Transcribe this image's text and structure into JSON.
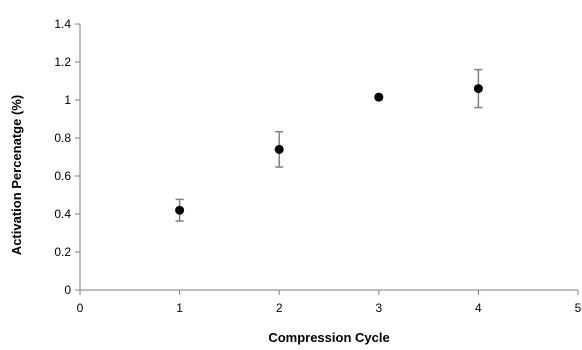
{
  "chart_data": {
    "type": "scatter",
    "xlabel": "Compression Cycle",
    "ylabel": "Activation Percenatge (%)",
    "xlim": [
      0,
      5
    ],
    "ylim": [
      0,
      1.4
    ],
    "x_ticks": [
      "0",
      "1",
      "2",
      "3",
      "4",
      "5"
    ],
    "y_ticks": [
      "0",
      "0.2",
      "0.4",
      "0.6",
      "0.8",
      "1",
      "1.2",
      "1.4"
    ],
    "grid": false,
    "legend": "none",
    "series": [
      {
        "x": [
          1,
          2,
          3,
          4
        ],
        "y": [
          0.42,
          0.74,
          1.015,
          1.06
        ],
        "error": [
          0.057,
          0.093,
          0.012,
          0.1
        ],
        "color": "#000000",
        "error_color": "#808080"
      }
    ]
  }
}
